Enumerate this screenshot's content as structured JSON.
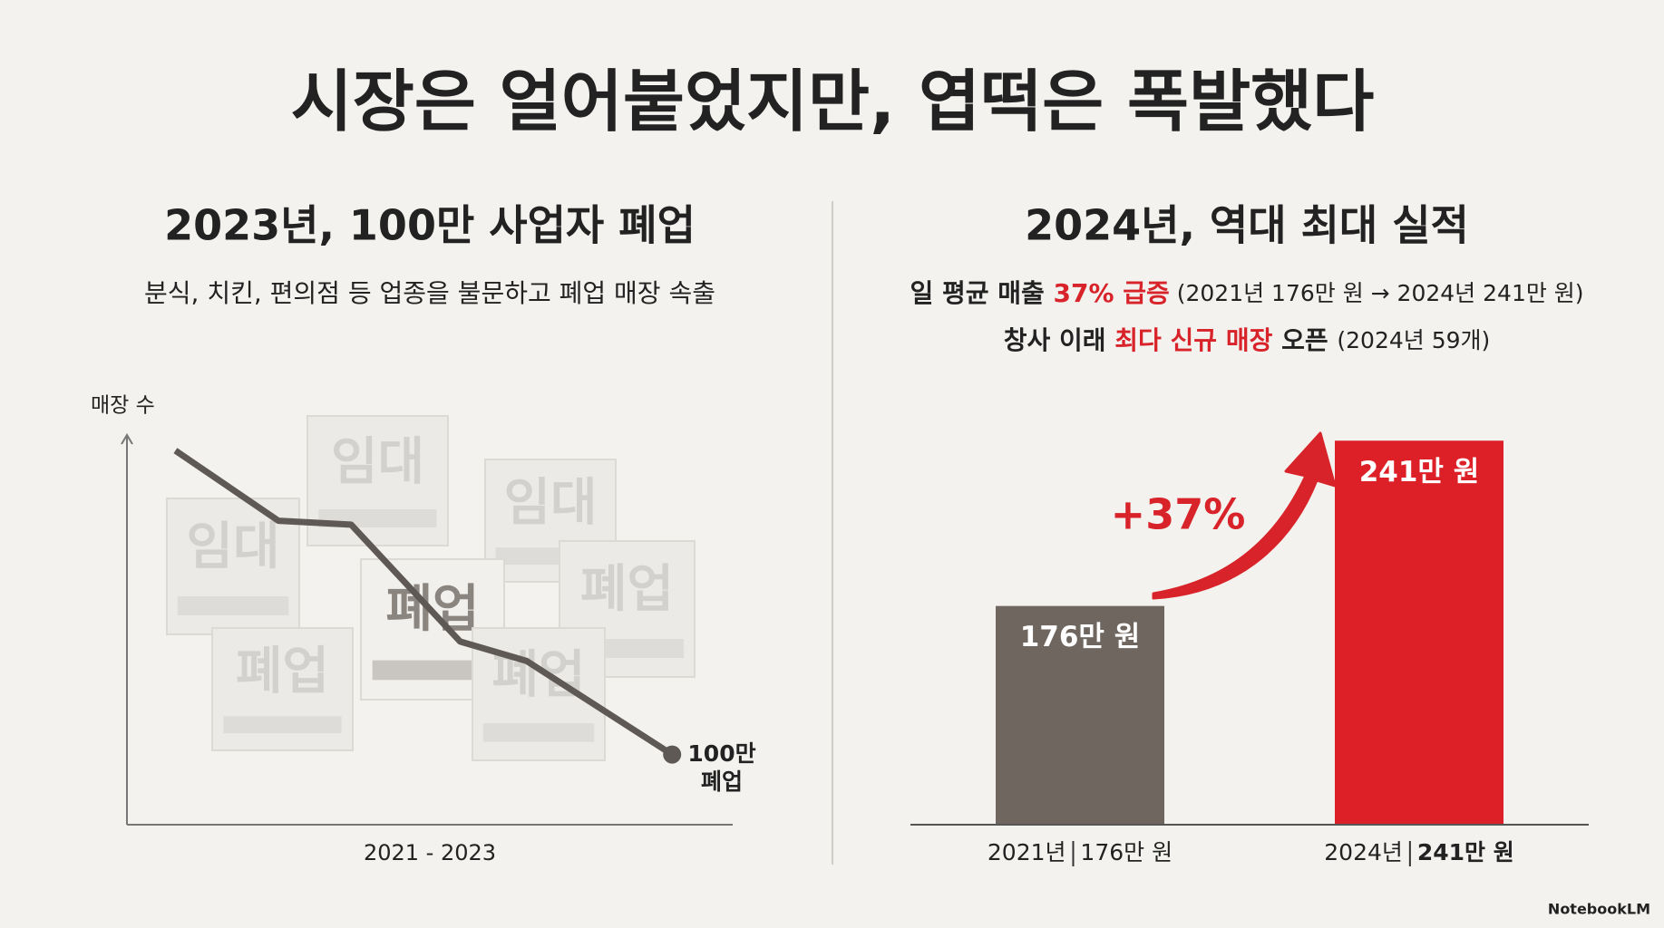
{
  "title": "시장은 얼어붙었지만, 엽떡은 폭발했다",
  "chart_data": [
    {
      "type": "line",
      "title": "2023년, 100만 사업자 폐업",
      "subtitle": "분식, 치킨, 편의점 등 업종을 불문하고 폐업 매장 속출",
      "y_label": "매장 수",
      "x_label": "2021 - 2023",
      "x": [
        8,
        25,
        37,
        55,
        66,
        90
      ],
      "values": [
        96,
        78,
        77,
        47,
        42,
        18
      ],
      "xlim": [
        0,
        100
      ],
      "ylim": [
        0,
        100
      ],
      "color": "#5f5955",
      "end_annotation": [
        "100만",
        "폐업"
      ],
      "background_words": [
        "임대",
        "임대",
        "임대",
        "폐업",
        "폐업",
        "폐업",
        "폐업"
      ]
    },
    {
      "type": "bar",
      "title": "2024년, 역대 최대 실적",
      "subtitle_lines": [
        [
          {
            "text": "일 평균 매출 "
          },
          {
            "text": "37% 급증",
            "emphasis": true
          },
          {
            "text": " (2021년 176만 원 → 2024년 241만 원)",
            "note": true
          }
        ],
        [
          {
            "text": "창사 이래 "
          },
          {
            "text": "최다 신규 매장",
            "emphasis": true
          },
          {
            "text": " 오픈 "
          },
          {
            "text": "(2024년 59개)",
            "note": true
          }
        ]
      ],
      "categories": [
        "2021년",
        "2024년"
      ],
      "values": [
        176,
        241
      ],
      "value_labels": [
        "176만 원",
        "241만 원"
      ],
      "colors": [
        "#6f665f",
        "#dd2027"
      ],
      "ylim": [
        90,
        250
      ],
      "annotation": "+37%",
      "emphasis_color": "#d8232a"
    }
  ],
  "footer": "NotebookLM"
}
